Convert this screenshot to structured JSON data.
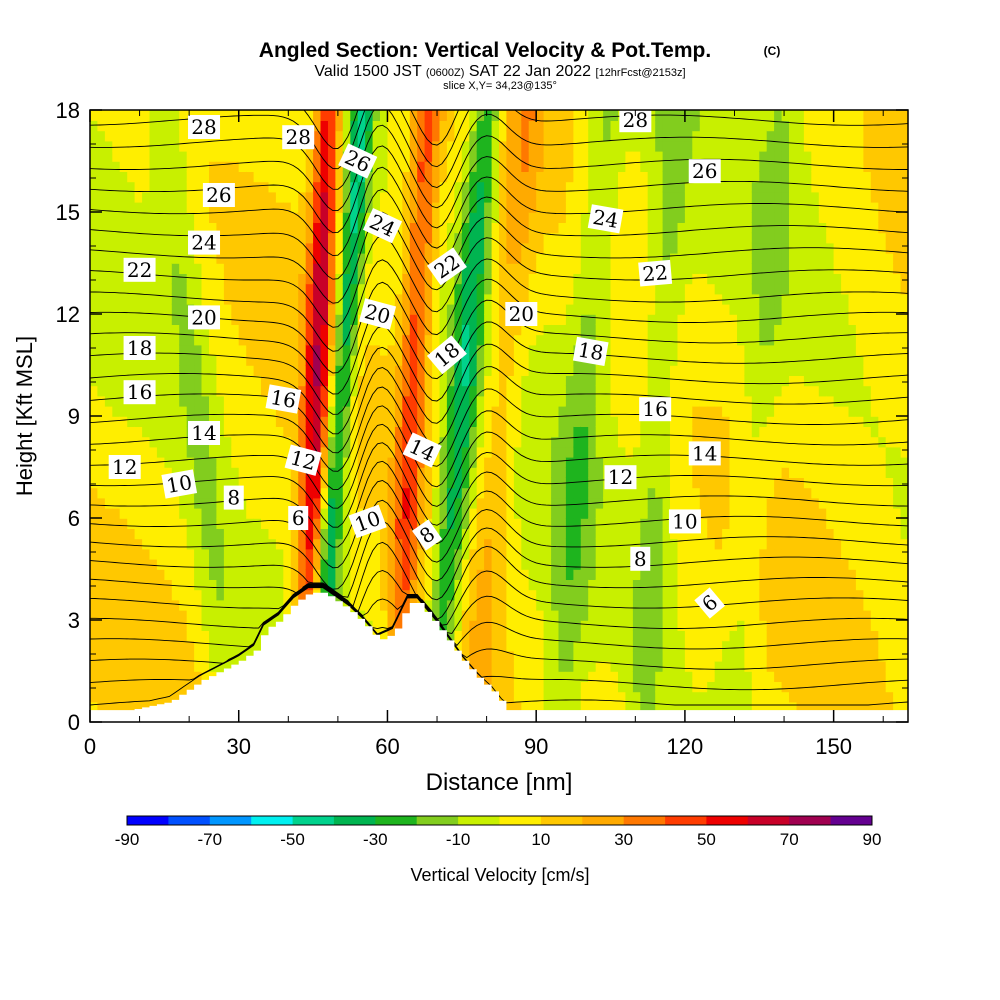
{
  "chart_data": {
    "type": "heatmap",
    "title": "Angled Section: Vertical Velocity & Pot.Temp.",
    "title_unit": "(C)",
    "subtitle_main_a": "Valid 1500 JST",
    "subtitle_zulu": "(0600Z)",
    "subtitle_main_b": "SAT 22 Jan 2022",
    "subtitle_fcst": "[12hrFcst@2153z]",
    "subtitle_slice": "slice X,Y= 34,23@135°",
    "xlabel": "Distance [nm]",
    "ylabel": "Height [Kft MSL]",
    "xlim": [
      0,
      165
    ],
    "ylim": [
      0,
      18
    ],
    "x_ticks": [
      "0",
      "30",
      "60",
      "90",
      "120",
      "150"
    ],
    "y_ticks": [
      "0",
      "3",
      "6",
      "9",
      "12",
      "15",
      "18"
    ],
    "colorbar": {
      "label": "Vertical Velocity [cm/s]",
      "tick_labels": [
        "-90",
        "-70",
        "-50",
        "-30",
        "-10",
        "10",
        "30",
        "50",
        "70",
        "90"
      ],
      "levels": [
        -90,
        -80,
        -70,
        -60,
        -50,
        -40,
        -30,
        -20,
        -10,
        0,
        10,
        20,
        30,
        40,
        50,
        60,
        70,
        80,
        90
      ],
      "colors": [
        "#0000ff",
        "#0050ff",
        "#0096ff",
        "#00f0f0",
        "#00d28c",
        "#00b450",
        "#1eb41e",
        "#82cd1e",
        "#c8f000",
        "#ffee00",
        "#ffc800",
        "#ffaa00",
        "#ff7800",
        "#ff3c00",
        "#ee0000",
        "#c80028",
        "#a00050",
        "#640090"
      ]
    },
    "terrain_profile": {
      "x": [
        0,
        8,
        16,
        19,
        22,
        26,
        30,
        33,
        35,
        38,
        41,
        44,
        47,
        52,
        55,
        58,
        61,
        64,
        66,
        70,
        73,
        75,
        78,
        81,
        84,
        165
      ],
      "height": [
        0.35,
        0.35,
        0.6,
        0.9,
        1.2,
        1.5,
        1.8,
        2.1,
        2.7,
        3.0,
        3.5,
        3.8,
        3.8,
        3.3,
        2.9,
        2.4,
        2.6,
        3.5,
        3.5,
        2.8,
        2.2,
        1.8,
        1.3,
        0.9,
        0.35,
        0.35
      ]
    },
    "velocity_features": [
      {
        "sign": "up",
        "x_bottom": 43,
        "x_top": 48,
        "strength": 55,
        "width": 2.6
      },
      {
        "sign": "down",
        "x_bottom": 46,
        "x_top": 55,
        "strength": -45,
        "width": 2.4
      },
      {
        "sign": "up",
        "x_bottom": 62,
        "x_top": 68,
        "strength": 40,
        "width": 3.0
      },
      {
        "sign": "down",
        "x_bottom": 70,
        "x_top": 80,
        "strength": -38,
        "width": 3.2
      },
      {
        "sign": "up",
        "x_bottom": 78,
        "x_top": 88,
        "strength": 18,
        "width": 4.0
      },
      {
        "sign": "down",
        "x_bottom": 28,
        "x_top": 15,
        "strength": -14,
        "width": 4.0
      },
      {
        "sign": "down",
        "x_bottom": 95,
        "x_top": 104,
        "strength": -16,
        "width": 4.0
      },
      {
        "sign": "down",
        "x_bottom": 112,
        "x_top": 118,
        "strength": -14,
        "width": 3.5
      },
      {
        "sign": "down",
        "x_bottom": 130,
        "x_top": 140,
        "strength": -10,
        "width": 4.0
      }
    ],
    "isotherm_labels": [
      {
        "text": "28",
        "x": 23,
        "y": 17.5,
        "angle": 0
      },
      {
        "text": "28",
        "x": 42,
        "y": 17.2,
        "angle": 0
      },
      {
        "text": "26",
        "x": 54,
        "y": 16.5,
        "angle": 25
      },
      {
        "text": "28",
        "x": 110,
        "y": 17.7,
        "angle": 0
      },
      {
        "text": "26",
        "x": 26,
        "y": 15.5,
        "angle": 0
      },
      {
        "text": "26",
        "x": 124,
        "y": 16.2,
        "angle": 0
      },
      {
        "text": "24",
        "x": 23,
        "y": 14.1,
        "angle": 0
      },
      {
        "text": "24",
        "x": 59,
        "y": 14.6,
        "angle": 25
      },
      {
        "text": "24",
        "x": 104,
        "y": 14.8,
        "angle": 10
      },
      {
        "text": "22",
        "x": 10,
        "y": 13.3,
        "angle": 0
      },
      {
        "text": "22",
        "x": 72,
        "y": 13.4,
        "angle": -35
      },
      {
        "text": "22",
        "x": 114,
        "y": 13.2,
        "angle": -5
      },
      {
        "text": "20",
        "x": 23,
        "y": 11.9,
        "angle": 0
      },
      {
        "text": "20",
        "x": 58,
        "y": 12.0,
        "angle": 15
      },
      {
        "text": "20",
        "x": 87,
        "y": 12.0,
        "angle": 0
      },
      {
        "text": "18",
        "x": 10,
        "y": 11.0,
        "angle": 0
      },
      {
        "text": "18",
        "x": 72,
        "y": 10.8,
        "angle": -40
      },
      {
        "text": "18",
        "x": 101,
        "y": 10.9,
        "angle": 10
      },
      {
        "text": "16",
        "x": 10,
        "y": 9.7,
        "angle": 0
      },
      {
        "text": "16",
        "x": 39,
        "y": 9.5,
        "angle": 10
      },
      {
        "text": "16",
        "x": 114,
        "y": 9.2,
        "angle": 0
      },
      {
        "text": "14",
        "x": 23,
        "y": 8.5,
        "angle": 0
      },
      {
        "text": "14",
        "x": 67,
        "y": 8.0,
        "angle": 25
      },
      {
        "text": "14",
        "x": 124,
        "y": 7.9,
        "angle": 0
      },
      {
        "text": "12",
        "x": 7,
        "y": 7.5,
        "angle": 0
      },
      {
        "text": "12",
        "x": 43,
        "y": 7.7,
        "angle": 15
      },
      {
        "text": "12",
        "x": 107,
        "y": 7.2,
        "angle": 0
      },
      {
        "text": "10",
        "x": 18,
        "y": 7.0,
        "angle": -10
      },
      {
        "text": "10",
        "x": 56,
        "y": 5.9,
        "angle": -20
      },
      {
        "text": "10",
        "x": 120,
        "y": 5.9,
        "angle": 0
      },
      {
        "text": "8",
        "x": 29,
        "y": 6.6,
        "angle": 0
      },
      {
        "text": "8",
        "x": 68,
        "y": 5.5,
        "angle": -35
      },
      {
        "text": "8",
        "x": 111,
        "y": 4.8,
        "angle": 0
      },
      {
        "text": "6",
        "x": 42,
        "y": 6.0,
        "angle": 0
      },
      {
        "text": "6",
        "x": 125,
        "y": 3.5,
        "angle": -40
      }
    ]
  }
}
